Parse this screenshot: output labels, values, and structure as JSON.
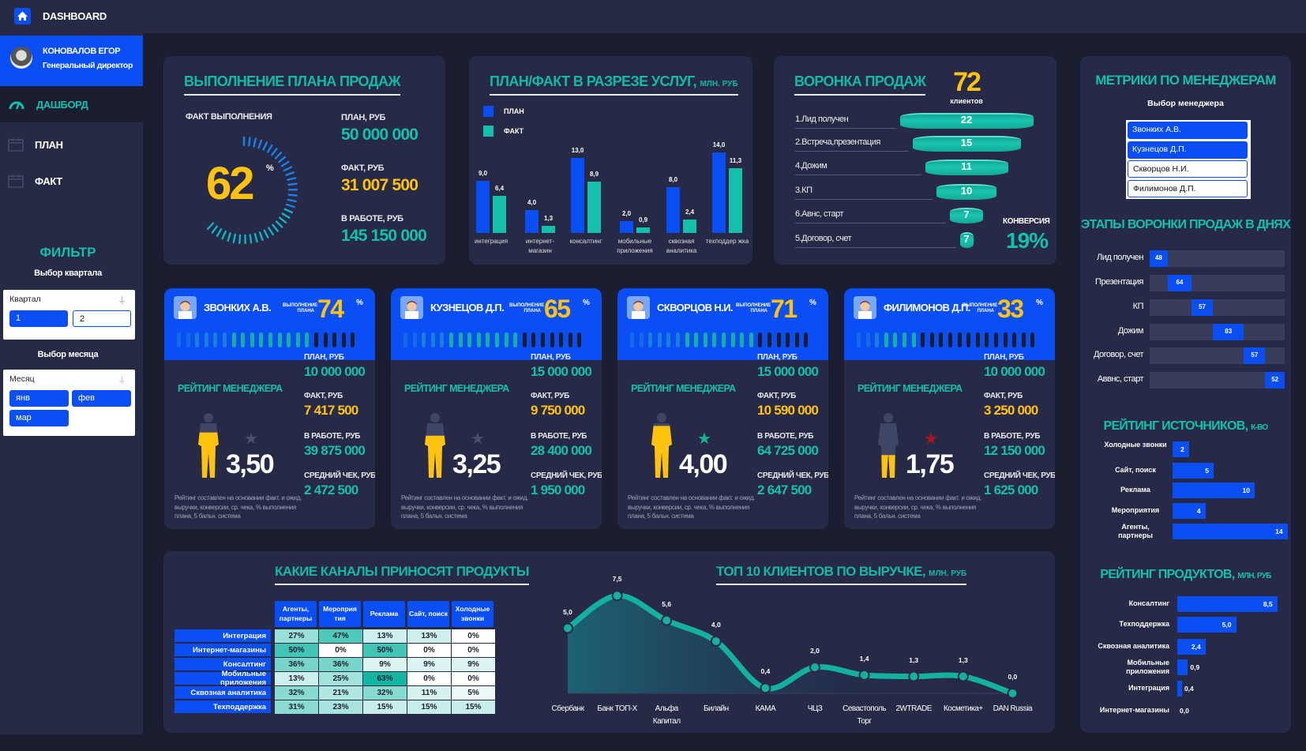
{
  "header": {
    "title": "DASHBOARD",
    "icon": "home-icon"
  },
  "user": {
    "name": "КОНОВАЛОВ ЕГОР",
    "role": "Генеральный директор"
  },
  "nav": [
    {
      "label": "ДАШБОРД",
      "icon": "gauge-icon",
      "active": true
    },
    {
      "label": "ПЛАН",
      "icon": "calendar-icon",
      "active": false
    },
    {
      "label": "ФАКТ",
      "icon": "calendar-icon",
      "active": false
    }
  ],
  "filter": {
    "title": "ФИЛЬТР",
    "quarter_label": "Выбор квартала",
    "quarter_slicer": {
      "title": "Квартал",
      "options": [
        {
          "label": "1",
          "selected": true
        },
        {
          "label": "2",
          "selected": false
        }
      ]
    },
    "month_label": "Выбор месяца",
    "month_slicer": {
      "title": "Месяц",
      "options": [
        {
          "label": "янв",
          "selected": true
        },
        {
          "label": "фев",
          "selected": true
        },
        {
          "label": "мар",
          "selected": true
        }
      ]
    }
  },
  "plan_execution": {
    "title": "ВЫПОЛНЕНИЕ ПЛАНА ПРОДАЖ",
    "fact_caption": "ФАКТ ВЫПОЛНЕНИЯ",
    "percent": 62,
    "percent_text": "62",
    "percent_sign": "%",
    "plan_label": "ПЛАН, РУБ",
    "plan_value": "50 000 000",
    "fact_label": "ФАКТ, РУБ",
    "fact_value": "31 007 500",
    "work_label": "В РАБОТЕ, РУБ",
    "work_value": "145 150 000"
  },
  "managers_panel": {
    "title": "МЕТРИКИ ПО МЕНЕДЖЕРАМ",
    "select_label": "Выбор менеджера",
    "options": [
      {
        "label": "Звонких А.В.",
        "selected": true
      },
      {
        "label": "Кузнецов Д.П.",
        "selected": true
      },
      {
        "label": "Скворцов Н.И.",
        "selected": false
      },
      {
        "label": "Филимонов Д.П.",
        "selected": false
      }
    ]
  },
  "manager_card_labels": {
    "plan_exec": "ВЫПОЛНЕНИЕ ПЛАНА",
    "percent_sign": "%",
    "rating_title": "РЕЙТИНГ МЕНЕДЖЕРА",
    "plan": "ПЛАН, РУБ",
    "fact": "ФАКТ, РУБ",
    "work": "В РАБОТЕ, РУБ",
    "avg_check": "СРЕДНИЙ ЧЕК, РУБ",
    "footnote": "Рейтинг составлен на основании факт. и ожид. выручки, конверсии, ср. чека, % выполнения плана, 5 бальн. система"
  },
  "managers": [
    {
      "name": "ЗВОНКИХ А.В.",
      "plan_pct": 74,
      "rating": 3.5,
      "rating_text": "3,50",
      "star_color": "#4a5170",
      "plan": "10 000 000",
      "fact": "7 417 500",
      "work": "39 875 000",
      "avg_check": "2 472 500"
    },
    {
      "name": "КУЗНЕЦОВ Д.П.",
      "plan_pct": 65,
      "rating": 3.25,
      "rating_text": "3,25",
      "star_color": "#4a5170",
      "plan": "15 000 000",
      "fact": "9 750 000",
      "work": "28 400 000",
      "avg_check": "1 950 000"
    },
    {
      "name": "СКВОРЦОВ Н.И.",
      "plan_pct": 71,
      "rating": 4.0,
      "rating_text": "4,00",
      "star_color": "#14b88a",
      "plan": "15 000 000",
      "fact": "10 590 000",
      "work": "64 725 000",
      "avg_check": "2 647 500"
    },
    {
      "name": "ФИЛИМОНОВ Д.П.",
      "plan_pct": 33,
      "rating": 1.75,
      "rating_text": "1,75",
      "star_color": "#b3121e",
      "plan": "10 000 000",
      "fact": "3 250 000",
      "work": "12 150 000",
      "avg_check": "1 625 000"
    }
  ],
  "colors": {
    "teal": "#14c0ac",
    "blue": "#0a4ff5",
    "yellow": "#ffc30f",
    "card": "#272a46",
    "background": "#1b1e31"
  },
  "chart_data": [
    {
      "type": "bar",
      "title": "ПЛАН/ФАКТ В РАЗРЕЗЕ УСЛУГ,",
      "unit": "МЛН. РУБ",
      "categories": [
        "интеграция",
        "интернет-магазин",
        "консалтинг",
        "мобильные приложения",
        "сквозная аналитика",
        "техподдер жка"
      ],
      "series": [
        {
          "name": "ПЛАН",
          "values": [
            9.0,
            4.0,
            13.0,
            2.0,
            8.0,
            14.0
          ],
          "color": "#0a4ff5"
        },
        {
          "name": "ФАКТ",
          "values": [
            6.4,
            1.3,
            8.9,
            0.9,
            2.4,
            11.3
          ],
          "color": "#14c0ac"
        }
      ],
      "legend": "top-left",
      "ylim": [
        0,
        14
      ]
    },
    {
      "type": "funnel",
      "title": "ВОРОНКА ПРОДАЖ",
      "total": "72",
      "total_label": "клиентов",
      "stages": [
        {
          "label": "1.Лид получен",
          "value": 22
        },
        {
          "label": "2.Встреча,презентация",
          "value": 15
        },
        {
          "label": "4.Дожим",
          "value": 11
        },
        {
          "label": "3.КП",
          "value": 10
        },
        {
          "label": "6.Авнс, старт",
          "value": 7
        },
        {
          "label": "5.Договор, счет",
          "value": 7
        }
      ],
      "conversion_label": "КОНВЕРСИЯ",
      "conversion": "19%"
    },
    {
      "type": "bar",
      "orientation": "horizontal-stacked",
      "title": "ЭТАПЫ ВОРОНКИ ПРОДАЖ В ДНЯХ",
      "categories": [
        "Лид получен",
        "Презентация",
        "КП",
        "Дожим",
        "Договор, счет",
        "Аввнс, старт"
      ],
      "values": [
        48,
        64,
        57,
        83,
        57,
        52
      ]
    },
    {
      "type": "bar",
      "orientation": "horizontal",
      "title": "РЕЙТИНГ ИСТОЧНИКОВ,",
      "unit": "К-ВО",
      "categories": [
        "Холодные звонки",
        "Сайт, поиск",
        "Реклама",
        "Мероприятия",
        "Агенты, партнеры"
      ],
      "values": [
        2,
        5,
        10,
        4,
        14
      ]
    },
    {
      "type": "bar",
      "orientation": "horizontal",
      "title": "РЕЙТИНГ ПРОДУКТОВ,",
      "unit": "МЛН. РУБ",
      "categories": [
        "Консалтинг",
        "Техподдержка",
        "Сквозная аналитика",
        "Мобильные приложения",
        "Интеграция",
        "Интернет-магазины"
      ],
      "values": [
        8.5,
        5.0,
        2.4,
        0.9,
        0.4,
        0.0
      ]
    },
    {
      "type": "table",
      "title": "КАКИЕ КАНАЛЫ ПРИНОСЯТ ПРОДУКТЫ",
      "columns": [
        "Агенты, партнеры",
        "Мероприя тия",
        "Реклама",
        "Сайт, поиск",
        "Холодные звонки"
      ],
      "rows": [
        "Интеграция",
        "Интернет-магазины",
        "Консалтинг",
        "Мобильные приложения",
        "Сквозная аналитика",
        "Техподдержка"
      ],
      "values": [
        [
          27,
          47,
          13,
          13,
          0
        ],
        [
          50,
          0,
          50,
          0,
          0
        ],
        [
          36,
          36,
          9,
          9,
          9
        ],
        [
          13,
          25,
          63,
          0,
          0
        ],
        [
          32,
          21,
          32,
          11,
          5
        ],
        [
          31,
          23,
          15,
          15,
          15
        ]
      ],
      "unit": "%"
    },
    {
      "type": "line",
      "title": "ТОП 10 КЛИЕНТОВ ПО ВЫРУЧКЕ,",
      "unit": "МЛН. РУБ",
      "categories": [
        "Сбербанк",
        "Банк ТОП-Х",
        "Альфа Капитал",
        "Билайн",
        "КАМА",
        "ЧЦЗ",
        "Севастополь Торг",
        "2WTRADE",
        "Косметика+",
        "DAN Russia"
      ],
      "values": [
        5.0,
        7.5,
        5.6,
        4.0,
        0.4,
        2.0,
        1.4,
        1.3,
        1.3,
        0.0
      ],
      "ylim": [
        0,
        7.5
      ]
    }
  ]
}
